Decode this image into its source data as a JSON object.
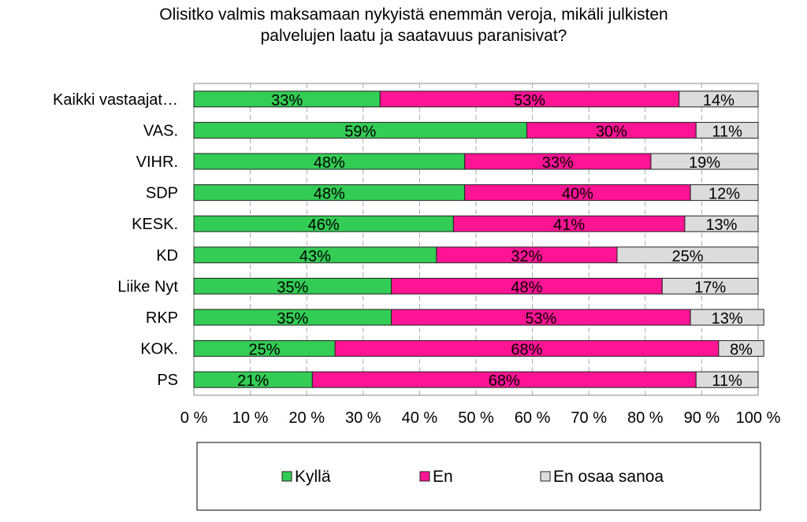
{
  "chart_data": {
    "type": "bar",
    "orientation": "horizontal",
    "stacked": "percent",
    "title": "Olisitko valmis maksamaan nykyistä enemmän veroja, mikäli julkisten palvelujen laatu ja saatavuus paranisivat?",
    "title_lines": [
      "Olisitko valmis maksamaan nykyistä enemmän veroja, mikäli julkisten",
      "palvelujen laatu ja saatavuus paranisivat?"
    ],
    "categories": [
      "Kaikki vastaajat…",
      "VAS.",
      "VIHR.",
      "SDP",
      "KESK.",
      "KD",
      "Liike Nyt",
      "RKP",
      "KOK.",
      "PS"
    ],
    "series": [
      {
        "name": "Kyllä",
        "color": "#33cc55",
        "values": [
          33,
          59,
          48,
          48,
          46,
          43,
          35,
          35,
          25,
          21
        ]
      },
      {
        "name": "En",
        "color": "#ff1493",
        "values": [
          53,
          30,
          33,
          40,
          41,
          32,
          48,
          53,
          68,
          68
        ]
      },
      {
        "name": "En osaa sanoa",
        "color": "#dcdcdc",
        "values": [
          14,
          11,
          19,
          12,
          13,
          25,
          17,
          13,
          8,
          11
        ]
      }
    ],
    "xlim": [
      0,
      100
    ],
    "x_ticks": [
      "0 %",
      "10 %",
      "20 %",
      "30 %",
      "40 %",
      "50 %",
      "60 %",
      "70 %",
      "80 %",
      "90 %",
      "100 %"
    ],
    "grid": "vertical dashed",
    "legend_position": "bottom",
    "value_suffix": "%"
  }
}
